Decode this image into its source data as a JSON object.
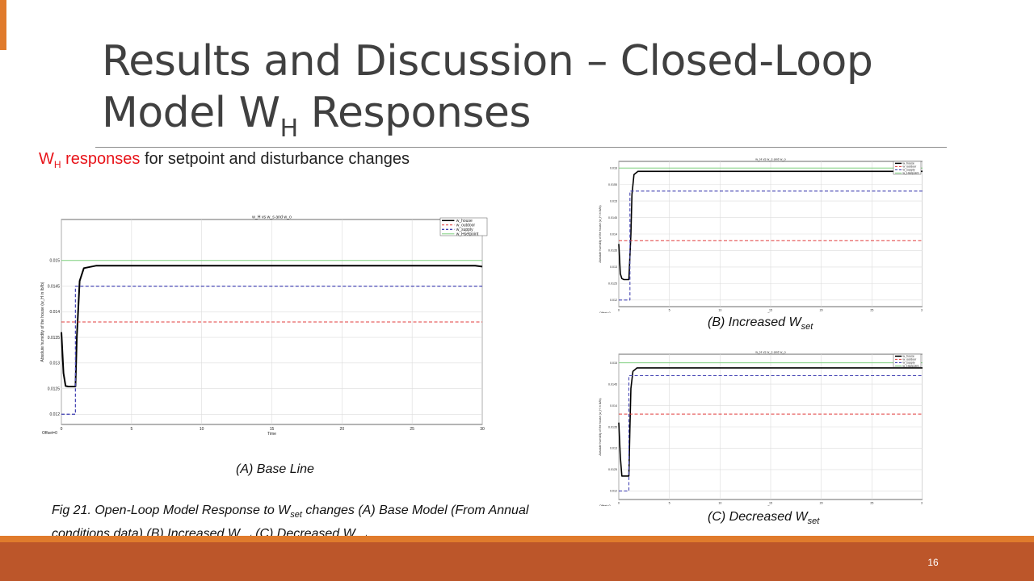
{
  "slide": {
    "title": "Results and Discussion – Closed-Loop Model W",
    "title_sub": "H",
    "title_end": " Responses",
    "subtitle_w": "W",
    "subtitle_w_sub": "H",
    "subtitle_red": " responses",
    "subtitle_rest": " for setpoint and disturbance changes",
    "caption_a": "(A) Base Line",
    "caption_b_pre": "(B) Increased W",
    "caption_b_sub": "set",
    "caption_c_pre": "(C) Decreased W",
    "caption_c_sub": "set",
    "fig_caption": {
      "p1": "Fig 21. Open-Loop Model Response to W",
      "s1": "set",
      "p2": " changes (A) Base Model (From Annual conditions data) (B) Increased W",
      "s2": "set",
      "p3": "  (C) Decreased W",
      "s3": "set"
    },
    "page_number": "16"
  },
  "colors": {
    "accent_orange": "#e07b2c",
    "footer_rust": "#bc562a",
    "subtitle_red": "#e8141a",
    "title_gray": "#404040"
  },
  "chart_data": [
    {
      "id": "A",
      "type": "line",
      "title": "w_H vs w_s and w_o",
      "xlabel": "Time",
      "ylabel": "Absolute humidity of the house (w_H in lb/lb)",
      "xlim": [
        0,
        30
      ],
      "ylim": [
        0.0118,
        0.0158
      ],
      "xticks": [
        0,
        5,
        10,
        15,
        20,
        25,
        30
      ],
      "yticks": [
        0.012,
        0.0125,
        0.013,
        0.0135,
        0.014,
        0.0145,
        0.015
      ],
      "ytick_labels": [
        "0.012",
        "0.0125",
        "0.013",
        "0.0135",
        "0.014",
        "0.0145",
        "0.015"
      ],
      "offset_label": "Offset=0",
      "legend": [
        "w_house",
        "w_outdoor",
        "w_supply",
        "w_Hsetpoint"
      ],
      "legend_position": "top-right",
      "grid": true,
      "series": [
        {
          "name": "w_house",
          "color": "#000000",
          "style": "solid",
          "width": 2,
          "x": [
            0,
            0.15,
            0.3,
            0.5,
            0.8,
            1.0,
            1.1,
            1.3,
            1.6,
            2.5,
            5,
            10,
            15,
            20,
            25,
            29.5,
            30
          ],
          "y": [
            0.0136,
            0.0128,
            0.01255,
            0.01254,
            0.01254,
            0.01254,
            0.0135,
            0.0146,
            0.01485,
            0.0149,
            0.0149,
            0.0149,
            0.0149,
            0.0149,
            0.0149,
            0.0149,
            0.01488
          ]
        },
        {
          "name": "w_outdoor",
          "color": "#e03c3c",
          "style": "dashed",
          "width": 1,
          "x": [
            0,
            30
          ],
          "y": [
            0.0138,
            0.0138
          ]
        },
        {
          "name": "w_supply",
          "color": "#4646b4",
          "style": "dashed",
          "width": 1.3,
          "x": [
            0,
            1.0,
            1.0,
            30
          ],
          "y": [
            0.012,
            0.012,
            0.0145,
            0.0145
          ]
        },
        {
          "name": "w_Hsetpoint",
          "color": "#7fd17f",
          "style": "solid",
          "width": 1,
          "x": [
            0,
            30
          ],
          "y": [
            0.015,
            0.015
          ]
        }
      ]
    },
    {
      "id": "B",
      "type": "line",
      "title": "w_H vs w_s and w_o",
      "xlabel": "Time",
      "ylabel": "Absolute humidity of the house (w_H in lb/lb)",
      "xlim": [
        0,
        30
      ],
      "ylim": [
        0.0118,
        0.0162
      ],
      "xticks": [
        0,
        5,
        10,
        15,
        20,
        25,
        30
      ],
      "yticks": [
        0.012,
        0.0125,
        0.013,
        0.0135,
        0.014,
        0.0145,
        0.015,
        0.0155,
        0.016
      ],
      "ytick_labels": [
        "0.012",
        "0.0125",
        "0.013",
        "0.0135",
        "0.014",
        "0.0145",
        "0.015",
        "0.0155",
        "0.016"
      ],
      "offset_label": "Offset=0",
      "legend": [
        "w_house",
        "w_outdoor",
        "w_supply",
        "w_Hsetpoint"
      ],
      "legend_position": "top-right",
      "grid": true,
      "series": [
        {
          "name": "w_house",
          "color": "#000000",
          "style": "solid",
          "width": 1.6,
          "x": [
            0,
            0.15,
            0.3,
            0.5,
            1.0,
            1.2,
            1.3,
            1.5,
            1.9,
            3,
            10,
            20,
            30
          ],
          "y": [
            0.0137,
            0.0128,
            0.01265,
            0.01262,
            0.01262,
            0.014,
            0.0152,
            0.0158,
            0.0159,
            0.0159,
            0.0159,
            0.0159,
            0.0159
          ]
        },
        {
          "name": "w_outdoor",
          "color": "#e03c3c",
          "style": "dashed",
          "width": 1,
          "x": [
            0,
            30
          ],
          "y": [
            0.0138,
            0.0138
          ]
        },
        {
          "name": "w_supply",
          "color": "#4646b4",
          "style": "dashed",
          "width": 1.1,
          "x": [
            0,
            1.1,
            1.1,
            30
          ],
          "y": [
            0.012,
            0.012,
            0.0153,
            0.0153
          ]
        },
        {
          "name": "w_Hsetpoint",
          "color": "#7fd17f",
          "style": "solid",
          "width": 1,
          "x": [
            0,
            30
          ],
          "y": [
            0.016,
            0.016
          ]
        }
      ]
    },
    {
      "id": "C",
      "type": "line",
      "title": "w_H vs w_s and w_o",
      "xlabel": "Time",
      "ylabel": "Absolute humidity of the house (w_H in lb/lb)",
      "xlim": [
        0,
        30
      ],
      "ylim": [
        0.0118,
        0.0152
      ],
      "xticks": [
        0,
        5,
        10,
        15,
        20,
        25,
        30
      ],
      "yticks": [
        0.012,
        0.0125,
        0.013,
        0.0135,
        0.014,
        0.0145,
        0.015
      ],
      "ytick_labels": [
        "0.012",
        "0.0125",
        "0.013",
        "0.0135",
        "0.014",
        "0.0145",
        "0.015"
      ],
      "offset_label": "Offset=0",
      "legend": [
        "w_house",
        "w_outdoor",
        "w_supply",
        "w_Hsetpoint"
      ],
      "legend_position": "top-right",
      "grid": true,
      "series": [
        {
          "name": "w_house",
          "color": "#000000",
          "style": "solid",
          "width": 1.6,
          "x": [
            0,
            0.15,
            0.3,
            0.5,
            1.0,
            1.1,
            1.2,
            1.4,
            1.8,
            3,
            10,
            20,
            30
          ],
          "y": [
            0.0136,
            0.0128,
            0.01235,
            0.01235,
            0.01235,
            0.0135,
            0.0144,
            0.0148,
            0.01488,
            0.01488,
            0.01488,
            0.01488,
            0.01488
          ]
        },
        {
          "name": "w_outdoor",
          "color": "#e03c3c",
          "style": "dashed",
          "width": 1,
          "x": [
            0,
            30
          ],
          "y": [
            0.0138,
            0.0138
          ]
        },
        {
          "name": "w_supply",
          "color": "#4646b4",
          "style": "dashed",
          "width": 1.1,
          "x": [
            0,
            1.0,
            1.0,
            30
          ],
          "y": [
            0.012,
            0.012,
            0.0147,
            0.0147
          ]
        },
        {
          "name": "w_Hsetpoint",
          "color": "#7fd17f",
          "style": "solid",
          "width": 1,
          "x": [
            0,
            30
          ],
          "y": [
            0.015,
            0.015
          ]
        }
      ]
    }
  ]
}
